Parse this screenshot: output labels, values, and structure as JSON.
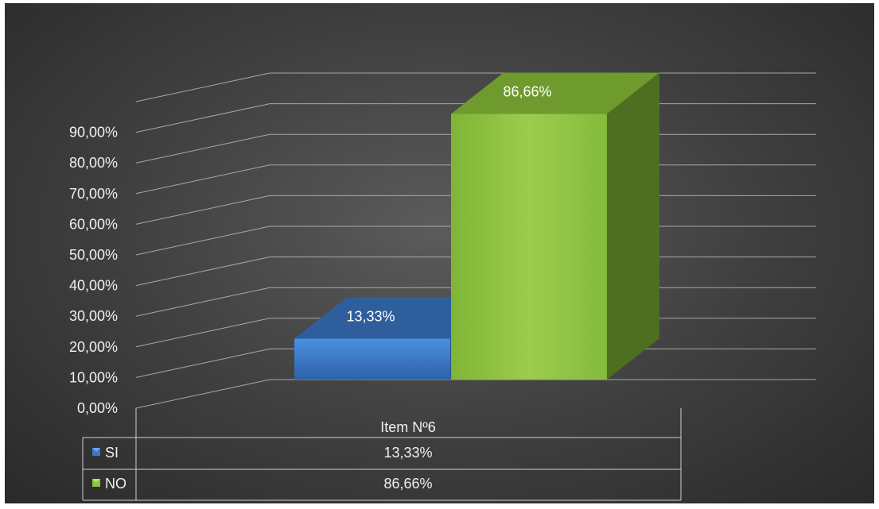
{
  "chart_data": {
    "type": "bar",
    "categories": [
      "Item Nº6"
    ],
    "series": [
      {
        "name": "SI",
        "values": [
          13.33
        ],
        "color": "#3a78c9",
        "value_label": "13,33%"
      },
      {
        "name": "NO",
        "values": [
          86.66
        ],
        "color": "#8dc63f",
        "value_label": "86,66%"
      }
    ],
    "ylim": [
      0,
      90
    ],
    "yticks": [
      "0,00%",
      "10,00%",
      "20,00%",
      "30,00%",
      "40,00%",
      "50,00%",
      "60,00%",
      "70,00%",
      "80,00%",
      "90,00%"
    ],
    "grid": true,
    "three_d": true,
    "legend": "data-table-below"
  },
  "table": {
    "header": "Item Nº6",
    "rows": [
      {
        "label": "SI",
        "value": "13,33%",
        "icon": "blue-legend-key-icon"
      },
      {
        "label": "NO",
        "value": "86,66%",
        "icon": "green-legend-key-icon"
      }
    ]
  }
}
